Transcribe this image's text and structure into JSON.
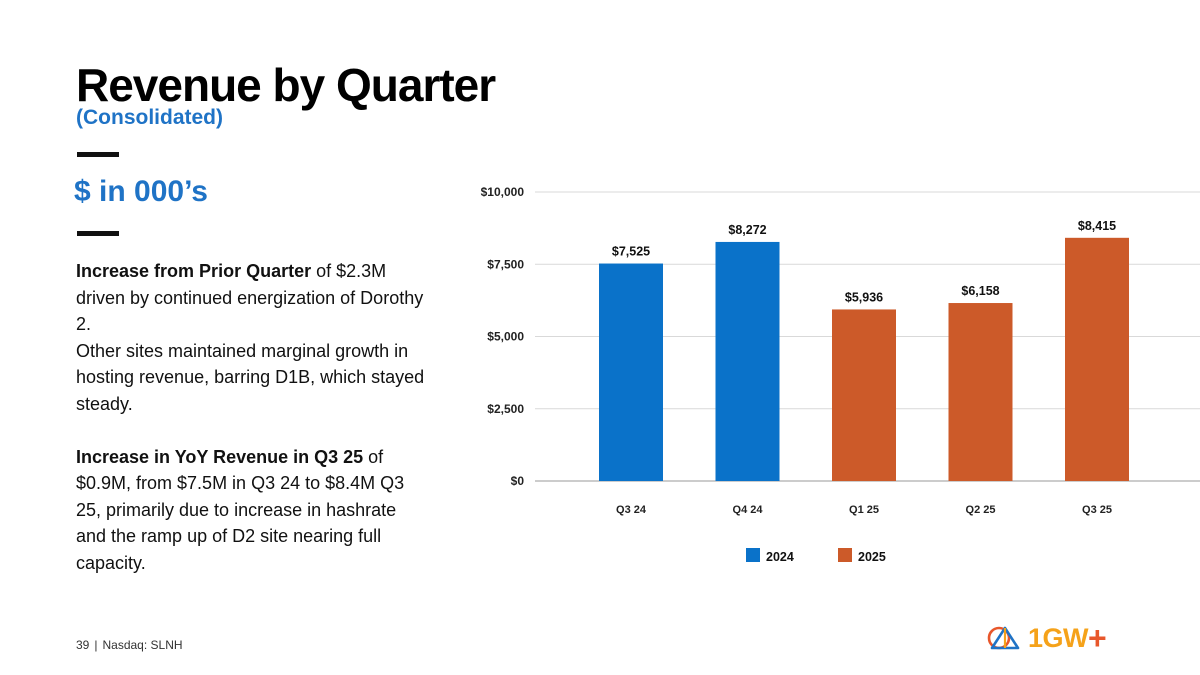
{
  "slide": {
    "title": "Revenue by Quarter",
    "subtitle": "(Consolidated)",
    "units": "$ in 000’s"
  },
  "commentary": {
    "p1_bold": "Increase from Prior Quarter",
    "p1_rest": " of $2.3M driven by continued energization of Dorothy 2.",
    "p2": "Other sites maintained marginal growth in hosting revenue, barring D1B, which stayed steady.",
    "p3_bold": "Increase in YoY Revenue in Q3 25",
    "p3_rest": " of $0.9M, from $7.5M in Q3 24 to $8.4M Q3 25, primarily due to increase in hashrate and the ramp up of D2 site nearing full capacity."
  },
  "footer": {
    "page_number": "39",
    "separator": "|",
    "ticker": "Nasdaq: SLNH"
  },
  "logo": {
    "text": "1GW",
    "plus": "+"
  },
  "colors": {
    "accent": "#1f73c6",
    "series_2024": "#0a72c9",
    "series_2025": "#cc5a29",
    "logo_yellow": "#f5a21a",
    "logo_orange": "#e8572b"
  },
  "chart_data": {
    "type": "bar",
    "title": "",
    "xlabel": "",
    "ylabel": "",
    "categories": [
      "Q3 24",
      "Q4 24",
      "Q1 25",
      "Q2 25",
      "Q3 25"
    ],
    "values": [
      7525,
      8272,
      5936,
      6158,
      8415
    ],
    "data_labels": [
      "$7,525",
      "$8,272",
      "$5,936",
      "$6,158",
      "$8,415"
    ],
    "bar_series": [
      "2024",
      "2024",
      "2025",
      "2025",
      "2025"
    ],
    "legend": [
      {
        "name": "2024",
        "color": "#0a72c9"
      },
      {
        "name": "2025",
        "color": "#cc5a29"
      }
    ],
    "legend_position": "bottom",
    "ylim": [
      0,
      10000
    ],
    "yticks": [
      0,
      2500,
      5000,
      7500,
      10000
    ],
    "ytick_labels": [
      "$0",
      "$2,500",
      "$5,000",
      "$7,500",
      "$10,000"
    ],
    "grid": true
  }
}
